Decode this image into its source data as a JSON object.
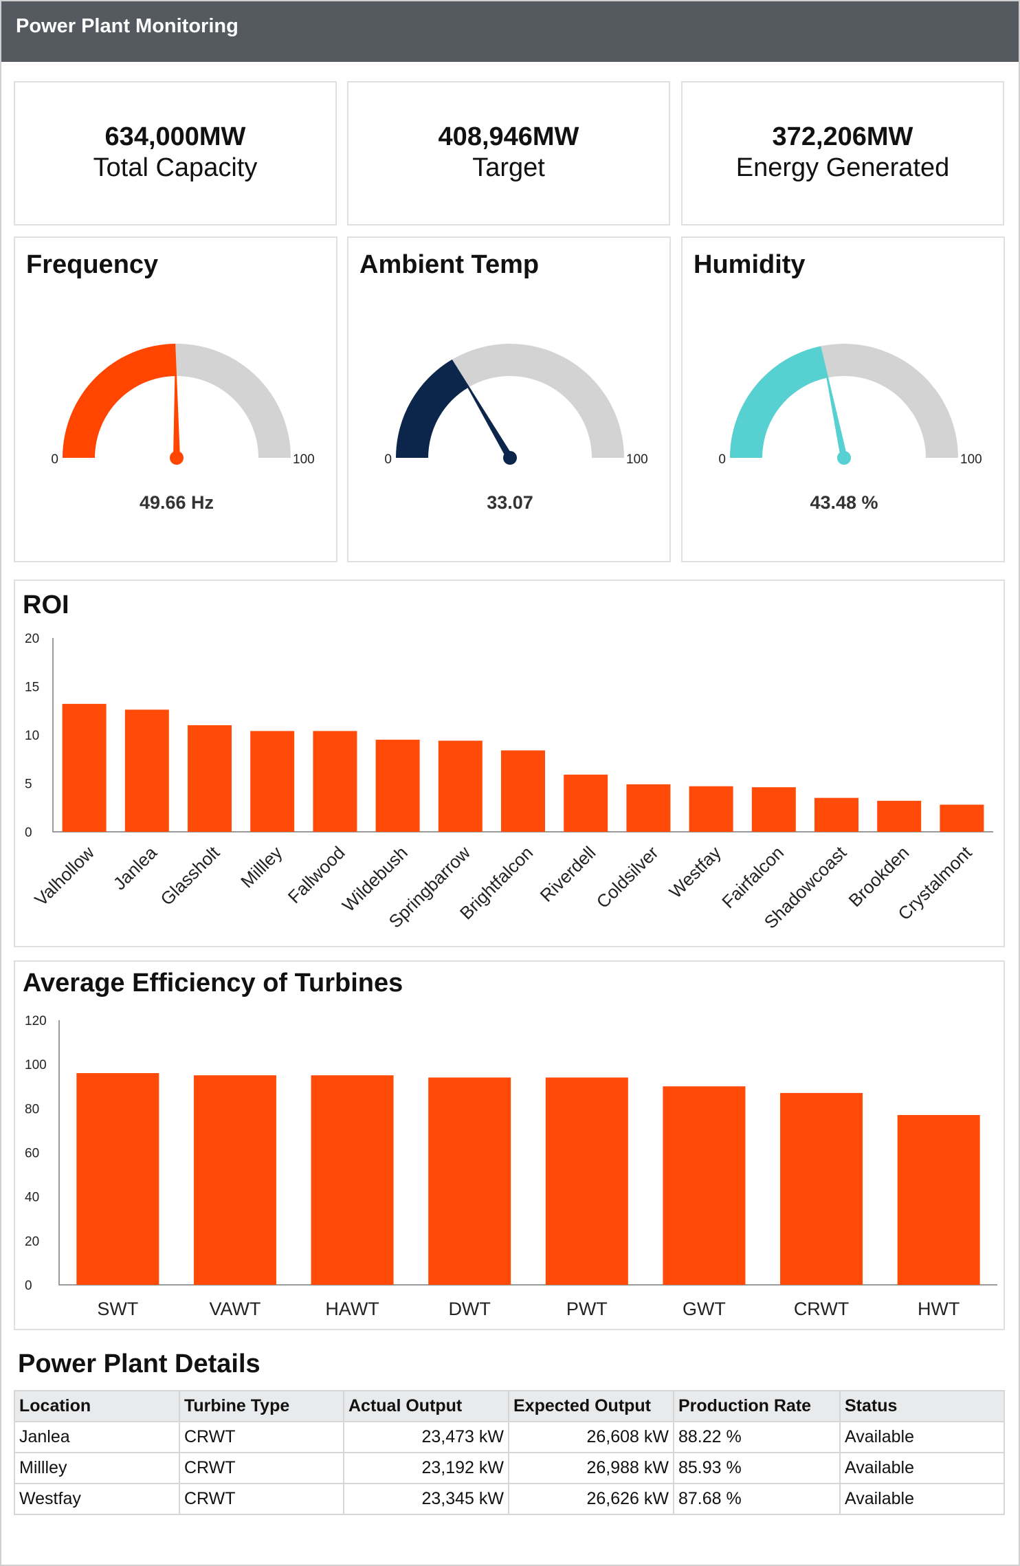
{
  "header": {
    "title": "Power Plant Monitoring"
  },
  "kpis": [
    {
      "value": "634,000MW",
      "label": "Total Capacity"
    },
    {
      "value": "408,946MW",
      "label": "Target"
    },
    {
      "value": "372,206MW",
      "label": "Energy Generated"
    }
  ],
  "gauges": [
    {
      "title": "Frequency",
      "value": 49.66,
      "reading": "49.66 Hz",
      "min_label": "0",
      "max_label": "100",
      "color": "#ff4500"
    },
    {
      "title": "Ambient Temp",
      "value": 33.07,
      "reading": "33.07",
      "min_label": "0",
      "max_label": "100",
      "color": "#0b264a"
    },
    {
      "title": "Humidity",
      "value": 43.48,
      "reading": "43.48 %",
      "min_label": "0",
      "max_label": "100",
      "color": "#56d0d0"
    }
  ],
  "gauge_track_color": "#d3d3d3",
  "bar_color": "#ff4a08",
  "chart_data": [
    {
      "type": "bar",
      "title": "ROI",
      "categories": [
        "Valhollow",
        "Janlea",
        "Glassholt",
        "Millley",
        "Fallwood",
        "Wildebush",
        "Springbarrow",
        "Brightfalcon",
        "Riverdell",
        "Coldsilver",
        "Westfay",
        "Fairfalcon",
        "Shadowcoast",
        "Brookden",
        "Crystalmont"
      ],
      "values": [
        13.2,
        12.6,
        11.0,
        10.4,
        10.4,
        9.5,
        9.4,
        8.4,
        5.9,
        4.9,
        4.7,
        4.6,
        3.5,
        3.2,
        2.8
      ],
      "yticks": [
        "0",
        "5",
        "10",
        "15",
        "20"
      ],
      "ylim": [
        0,
        20
      ],
      "grid": false
    },
    {
      "type": "bar",
      "title": "Average Efficiency of Turbines",
      "categories": [
        "SWT",
        "VAWT",
        "HAWT",
        "DWT",
        "PWT",
        "GWT",
        "CRWT",
        "HWT"
      ],
      "values": [
        96,
        95,
        95,
        94,
        94,
        90,
        87,
        77
      ],
      "yticks": [
        "0",
        "20",
        "40",
        "60",
        "80",
        "100",
        "120"
      ],
      "ylim": [
        0,
        120
      ],
      "grid": false
    }
  ],
  "details": {
    "title": "Power Plant Details",
    "columns": [
      "Location",
      "Turbine Type",
      "Actual Output",
      "Expected Output",
      "Production Rate",
      "Status"
    ],
    "rows": [
      [
        "Janlea",
        "CRWT",
        "23,473 kW",
        "26,608 kW",
        "88.22 %",
        "Available"
      ],
      [
        "Millley",
        "CRWT",
        "23,192 kW",
        "26,988 kW",
        "85.93 %",
        "Available"
      ],
      [
        "Westfay",
        "CRWT",
        "23,345 kW",
        "26,626 kW",
        "87.68 %",
        "Available"
      ]
    ]
  }
}
